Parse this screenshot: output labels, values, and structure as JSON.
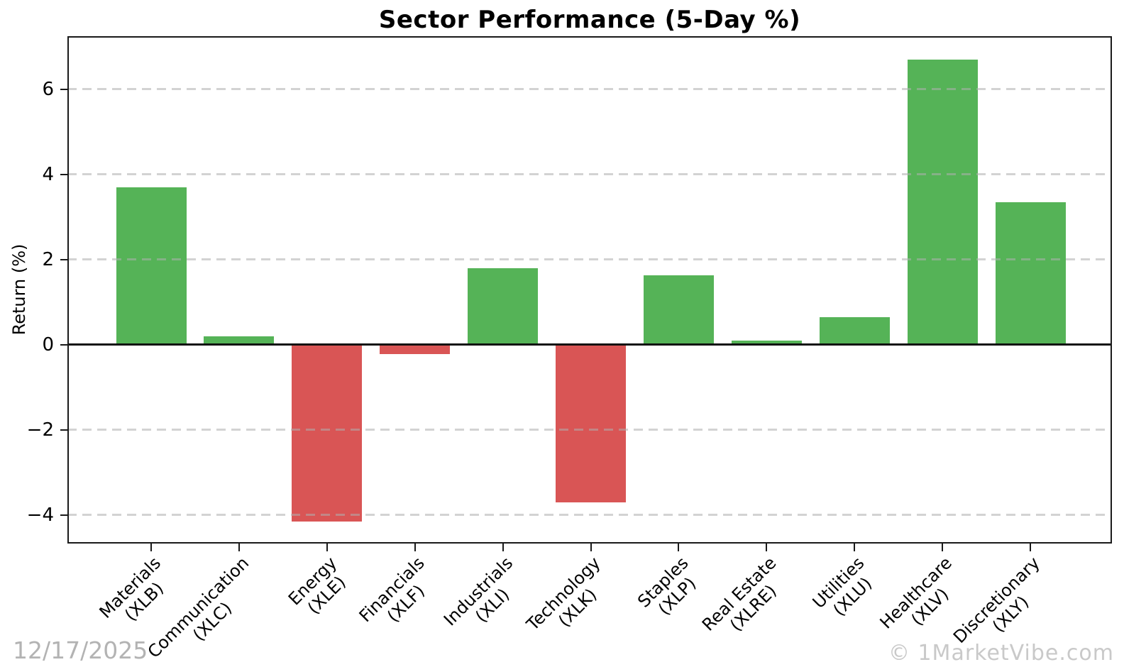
{
  "title": "Sector Performance (5-Day %)",
  "date": "12/17/2025",
  "watermark": "© 1MarketVibe.com",
  "chart_data": {
    "type": "bar",
    "title": "Sector Performance (5-Day %)",
    "xlabel": "",
    "ylabel": "Return (%)",
    "ylim": [
      -4.68,
      7.24
    ],
    "yticks": [
      -4,
      -2,
      0,
      2,
      4,
      6
    ],
    "grid": "horizontal-dashed",
    "zero_line": true,
    "legend": "none",
    "categories": [
      "Materials",
      "Communication",
      "Energy",
      "Financials",
      "Industrials",
      "Technology",
      "Staples",
      "Real Estate",
      "Utilities",
      "Healthcare",
      "Discretionary"
    ],
    "tickers": [
      "XLB",
      "XLC",
      "XLE",
      "XLF",
      "XLI",
      "XLK",
      "XLP",
      "XLRE",
      "XLU",
      "XLV",
      "XLY"
    ],
    "values": [
      3.7,
      0.2,
      -4.15,
      -0.23,
      1.8,
      -3.7,
      1.63,
      0.1,
      0.65,
      6.7,
      3.35
    ],
    "positive_color": "#55b357",
    "negative_color": "#d95555"
  }
}
